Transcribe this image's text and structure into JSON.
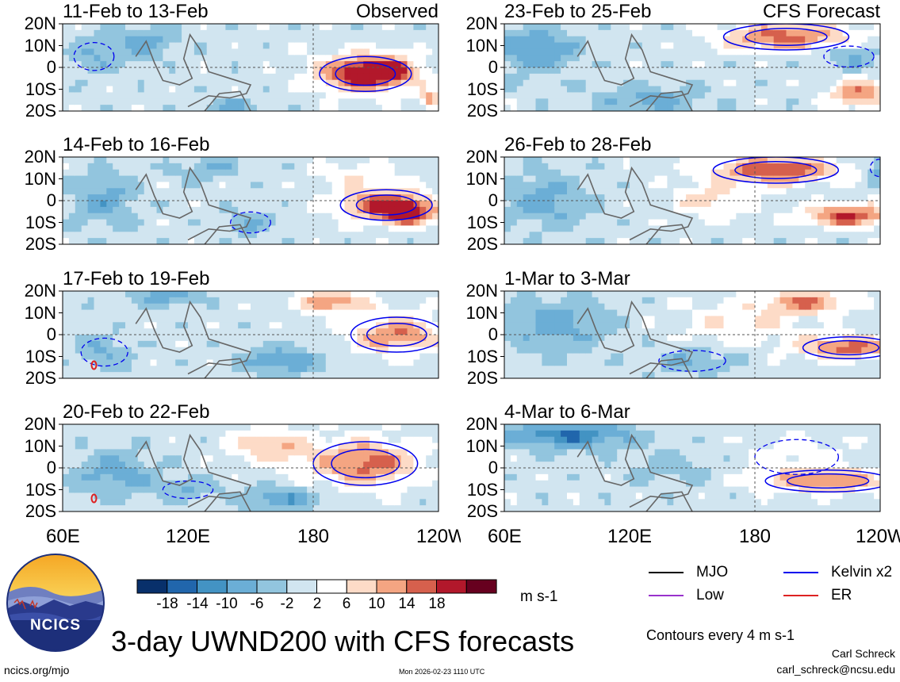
{
  "chart_data": {
    "type": "heatmap",
    "title": "3-day UWND200 with CFS forecasts",
    "units": "m s-1",
    "contour_note": "Contours every 4 m s-1",
    "x_range": [
      60,
      240
    ],
    "y_range": [
      -20,
      20
    ],
    "x_tick_labels": [
      "60E",
      "120E",
      "180",
      "120W"
    ],
    "y_tick_labels": [
      "20N",
      "10N",
      "0",
      "10S",
      "20S"
    ],
    "colorbar_levels": [
      "-18",
      "-14",
      "-10",
      "-6",
      "-2",
      "2",
      "6",
      "10",
      "14",
      "18"
    ],
    "colorbar_colors": [
      "#08306b",
      "#2166ac",
      "#4393c3",
      "#6baed6",
      "#92c5de",
      "#d1e5f0",
      "#ffffff",
      "#fddbc7",
      "#f4a582",
      "#d6604d",
      "#b2182b",
      "#67001f"
    ],
    "legend": [
      {
        "name": "MJO",
        "color": "#000000"
      },
      {
        "name": "Low",
        "color": "#9932cc"
      },
      {
        "name": "Kelvin x2",
        "color": "#0000ee"
      },
      {
        "name": "ER",
        "color": "#dd2222"
      }
    ],
    "panels": [
      {
        "period": "11-Feb to 13-Feb",
        "tag": "Observed",
        "blobs": [
          [
            205,
            -3,
            22,
            8,
            22
          ],
          [
            215,
            -1,
            12,
            5,
            14
          ],
          [
            236,
            -15,
            5,
            4,
            12
          ],
          [
            140,
            -18,
            12,
            4,
            -8
          ],
          [
            100,
            12,
            15,
            7,
            -8
          ],
          [
            75,
            5,
            12,
            8,
            -6
          ]
        ]
      },
      {
        "period": "14-Feb to 16-Feb",
        "tag": "",
        "blobs": [
          [
            215,
            -2,
            22,
            7,
            18
          ],
          [
            225,
            -6,
            12,
            5,
            16
          ],
          [
            200,
            12,
            18,
            6,
            6
          ],
          [
            80,
            0,
            15,
            12,
            -8
          ],
          [
            130,
            15,
            16,
            5,
            -6
          ],
          [
            150,
            -10,
            12,
            6,
            -6
          ]
        ]
      },
      {
        "period": "17-Feb to 19-Feb",
        "tag": "",
        "blobs": [
          [
            220,
            0,
            22,
            8,
            14
          ],
          [
            190,
            15,
            16,
            5,
            14
          ],
          [
            165,
            -12,
            18,
            6,
            -10
          ],
          [
            110,
            18,
            16,
            5,
            -8
          ],
          [
            80,
            -8,
            14,
            8,
            -6
          ]
        ]
      },
      {
        "period": "20-Feb to 22-Feb",
        "tag": "",
        "blobs": [
          [
            205,
            2,
            25,
            10,
            16
          ],
          [
            160,
            10,
            18,
            8,
            10
          ],
          [
            165,
            -14,
            18,
            5,
            -10
          ],
          [
            85,
            -3,
            20,
            10,
            -8
          ],
          [
            120,
            -10,
            15,
            5,
            -6
          ]
        ]
      },
      {
        "period": "23-Feb to 25-Feb",
        "tag": "CFS Forecast",
        "blobs": [
          [
            195,
            14,
            30,
            6,
            16
          ],
          [
            230,
            -12,
            14,
            6,
            14
          ],
          [
            75,
            8,
            20,
            10,
            -10
          ],
          [
            130,
            -15,
            25,
            6,
            -8
          ],
          [
            225,
            5,
            15,
            6,
            -6
          ]
        ]
      },
      {
        "period": "26-Feb to 28-Feb",
        "tag": "",
        "blobs": [
          [
            190,
            14,
            30,
            6,
            18
          ],
          [
            225,
            -7,
            20,
            5,
            18
          ],
          [
            160,
            0,
            18,
            8,
            8
          ],
          [
            80,
            0,
            20,
            12,
            -8
          ],
          [
            240,
            15,
            6,
            5,
            -10
          ]
        ]
      },
      {
        "period": "1-Mar to 3-Mar",
        "tag": "",
        "blobs": [
          [
            225,
            -6,
            22,
            5,
            16
          ],
          [
            205,
            15,
            20,
            5,
            14
          ],
          [
            175,
            5,
            30,
            10,
            6
          ],
          [
            85,
            5,
            25,
            12,
            -8
          ],
          [
            150,
            -12,
            20,
            6,
            -6
          ]
        ]
      },
      {
        "period": "4-Mar to 6-Mar",
        "tag": "",
        "blobs": [
          [
            215,
            -6,
            30,
            5,
            14
          ],
          [
            90,
            15,
            30,
            6,
            -14
          ],
          [
            140,
            0,
            20,
            8,
            -4
          ],
          [
            200,
            5,
            25,
            10,
            4
          ]
        ]
      }
    ]
  },
  "branding": {
    "logo_text": "NCICS",
    "site": "ncics.org/mjo",
    "timestamp": "Mon 2026-02-23 1110 UTC",
    "author": "Carl Schreck",
    "email": "carl_schreck@ncsu.edu"
  }
}
